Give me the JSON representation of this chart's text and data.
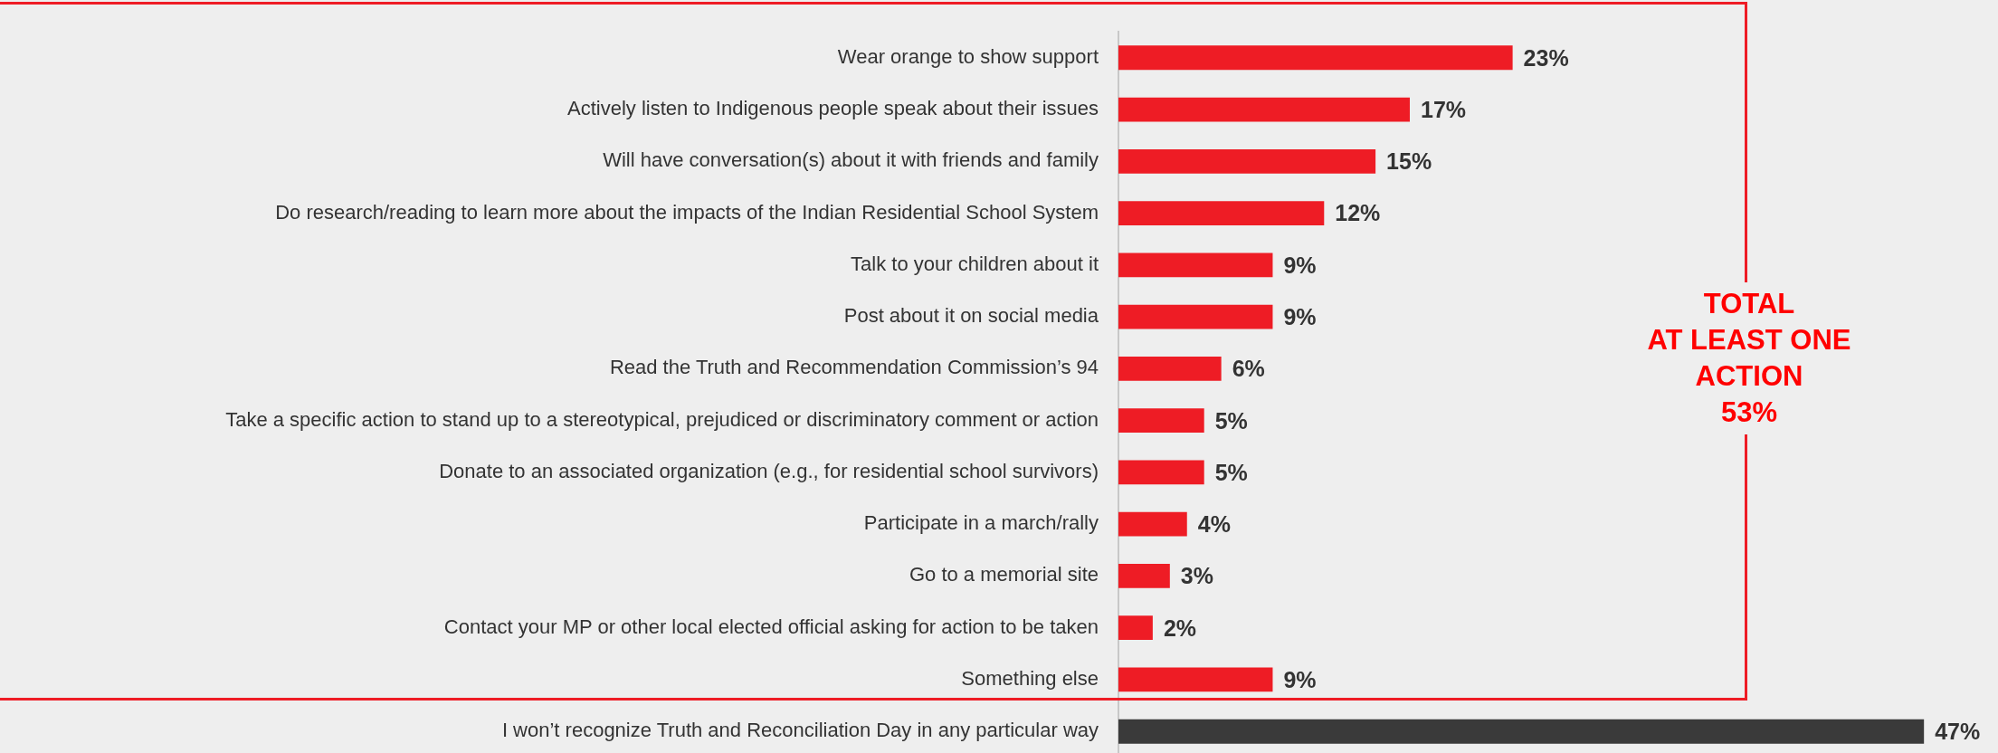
{
  "chart_data": {
    "type": "bar",
    "orientation": "horizontal",
    "categories": [
      "Wear orange to show support",
      "Actively listen to Indigenous people speak about their issues",
      "Will have conversation(s) about it with friends and family",
      "Do research/reading to learn more about the impacts of the Indian Residential School System",
      "Talk to your children about it",
      "Post about it on social media",
      "Read the Truth and Recommendation Commission’s 94",
      "Take a specific action to stand up to a stereotypical, prejudiced or discriminatory comment or action",
      "Donate to an associated organization (e.g., for residential school survivors)",
      "Participate in a march/rally",
      "Go to a memorial site",
      "Contact your MP or other local elected official asking for action to be taken",
      "Something else",
      "I won’t recognize Truth and Reconciliation Day in any particular way"
    ],
    "values": [
      23,
      17,
      15,
      12,
      9,
      9,
      6,
      5,
      5,
      4,
      3,
      2,
      9,
      47
    ],
    "value_labels": [
      "23%",
      "17%",
      "15%",
      "12%",
      "9%",
      "9%",
      "6%",
      "5%",
      "5%",
      "4%",
      "3%",
      "2%",
      "9%",
      "47%"
    ],
    "colors": [
      "#ee1c25",
      "#ee1c25",
      "#ee1c25",
      "#ee1c25",
      "#ee1c25",
      "#ee1c25",
      "#ee1c25",
      "#ee1c25",
      "#ee1c25",
      "#ee1c25",
      "#ee1c25",
      "#ee1c25",
      "#ee1c25",
      "#3a3a3a"
    ],
    "legend": false,
    "annotations": [
      "TOTAL\nAT LEAST ONE\nACTION\n53%"
    ]
  }
}
